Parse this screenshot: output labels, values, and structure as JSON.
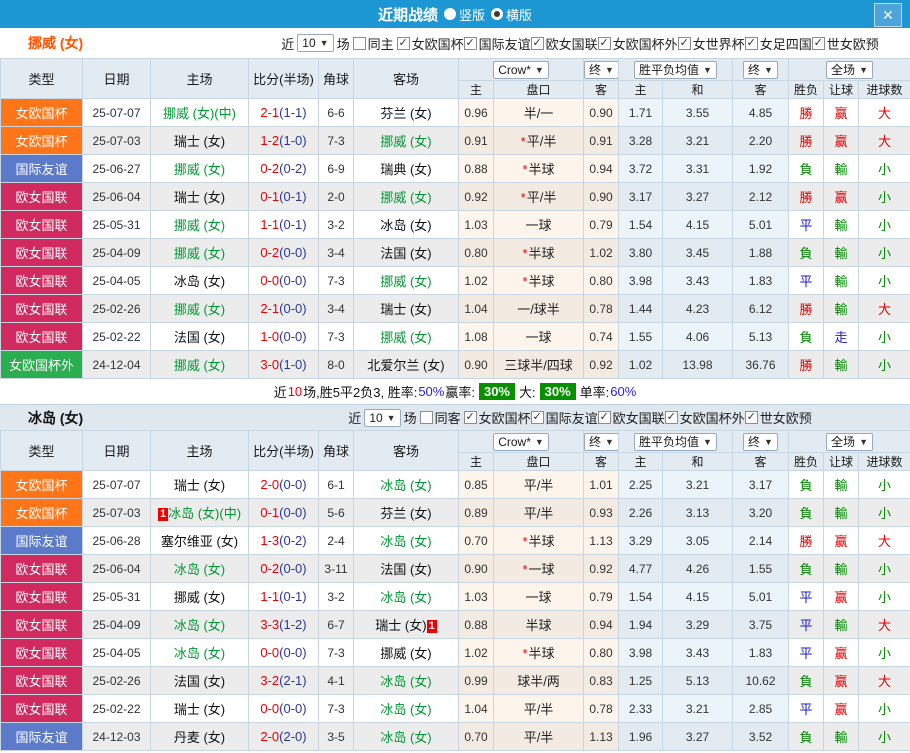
{
  "icons": {
    "dropdown_arrow": "▼",
    "checkmark": "✓",
    "close": "✕"
  },
  "titlebar": {
    "title": "近期战绩",
    "radio_options": [
      {
        "label": "竖版",
        "selected": false
      },
      {
        "label": "横版",
        "selected": true
      }
    ]
  },
  "header_labels": {
    "fixed": [
      "类型",
      "日期",
      "主场",
      "比分(半场)",
      "角球",
      "客场"
    ],
    "crow_select": "Crow*",
    "final_select": "终",
    "avg_select": "胜平负均值",
    "final2_select": "终",
    "scope_select": "全场",
    "sub": [
      "主",
      "盘口",
      "客",
      "主",
      "和",
      "客",
      "胜负",
      "让球",
      "进球数"
    ]
  },
  "type_colors": {
    "女欧国杯": "#ff7517",
    "国际友谊": "#5b7ac9",
    "欧女国联": "#d02a5f",
    "女欧国杯外": "#2bae4f"
  },
  "result_colors": {
    "勝": "#e60000",
    "赢": "#e60000",
    "大": "#e60000",
    "負": "#008800",
    "輸": "#008800",
    "小": "#008800",
    "平": "#1a1ad2",
    "走": "#1a1ad2"
  },
  "focus_color": "#009933",
  "sections": [
    {
      "team": "挪威 (女)",
      "team_color": "#ff5400",
      "filter": {
        "near": "近",
        "count": "10",
        "unit": "场",
        "same": {
          "label": "同主",
          "checked": false
        },
        "leagues": [
          {
            "label": "女欧国杯",
            "checked": true
          },
          {
            "label": "国际友谊",
            "checked": true
          },
          {
            "label": "欧女国联",
            "checked": true
          },
          {
            "label": "女欧国杯外",
            "checked": true
          },
          {
            "label": "女世界杯",
            "checked": true
          },
          {
            "label": "女足四国",
            "checked": true
          },
          {
            "label": "世女欧预",
            "checked": true
          }
        ]
      },
      "rows": [
        {
          "league": "女欧国杯",
          "date": "25-07-07",
          "home": "挪威 (女)(中)",
          "home_focus": true,
          "home_card": "",
          "score": "2-1",
          "half": "(1-1)",
          "corner": "6-6",
          "away": "芬兰 (女)",
          "away_focus": false,
          "away_card": "",
          "crow_home": "0.96",
          "star": false,
          "handicap": "半/一",
          "crow_away": "0.90",
          "avg_home": "1.71",
          "avg_draw": "3.55",
          "avg_away": "4.85",
          "result": "勝",
          "handicap_result": "赢",
          "goals": "大"
        },
        {
          "league": "女欧国杯",
          "date": "25-07-03",
          "home": "瑞士 (女)",
          "home_focus": false,
          "home_card": "",
          "score": "1-2",
          "half": "(1-0)",
          "corner": "7-3",
          "away": "挪威 (女)",
          "away_focus": true,
          "away_card": "",
          "crow_home": "0.91",
          "star": true,
          "handicap": "平/半",
          "crow_away": "0.91",
          "avg_home": "3.28",
          "avg_draw": "3.21",
          "avg_away": "2.20",
          "result": "勝",
          "handicap_result": "赢",
          "goals": "大"
        },
        {
          "league": "国际友谊",
          "date": "25-06-27",
          "home": "挪威 (女)",
          "home_focus": true,
          "home_card": "",
          "score": "0-2",
          "half": "(0-2)",
          "corner": "6-9",
          "away": "瑞典 (女)",
          "away_focus": false,
          "away_card": "",
          "crow_home": "0.88",
          "star": true,
          "handicap": "半球",
          "crow_away": "0.94",
          "avg_home": "3.72",
          "avg_draw": "3.31",
          "avg_away": "1.92",
          "result": "負",
          "handicap_result": "輸",
          "goals": "小"
        },
        {
          "league": "欧女国联",
          "date": "25-06-04",
          "home": "瑞士 (女)",
          "home_focus": false,
          "home_card": "",
          "score": "0-1",
          "half": "(0-1)",
          "corner": "2-0",
          "away": "挪威 (女)",
          "away_focus": true,
          "away_card": "",
          "crow_home": "0.92",
          "star": true,
          "handicap": "平/半",
          "crow_away": "0.90",
          "avg_home": "3.17",
          "avg_draw": "3.27",
          "avg_away": "2.12",
          "result": "勝",
          "handicap_result": "赢",
          "goals": "小"
        },
        {
          "league": "欧女国联",
          "date": "25-05-31",
          "home": "挪威 (女)",
          "home_focus": true,
          "home_card": "",
          "score": "1-1",
          "half": "(0-1)",
          "corner": "3-2",
          "away": "冰岛 (女)",
          "away_focus": false,
          "away_card": "",
          "crow_home": "1.03",
          "star": false,
          "handicap": "一球",
          "crow_away": "0.79",
          "avg_home": "1.54",
          "avg_draw": "4.15",
          "avg_away": "5.01",
          "result": "平",
          "handicap_result": "輸",
          "goals": "小"
        },
        {
          "league": "欧女国联",
          "date": "25-04-09",
          "home": "挪威 (女)",
          "home_focus": true,
          "home_card": "",
          "score": "0-2",
          "half": "(0-0)",
          "corner": "3-4",
          "away": "法国 (女)",
          "away_focus": false,
          "away_card": "",
          "crow_home": "0.80",
          "star": true,
          "handicap": "半球",
          "crow_away": "1.02",
          "avg_home": "3.80",
          "avg_draw": "3.45",
          "avg_away": "1.88",
          "result": "負",
          "handicap_result": "輸",
          "goals": "小"
        },
        {
          "league": "欧女国联",
          "date": "25-04-05",
          "home": "冰岛 (女)",
          "home_focus": false,
          "home_card": "",
          "score": "0-0",
          "half": "(0-0)",
          "corner": "7-3",
          "away": "挪威 (女)",
          "away_focus": true,
          "away_card": "",
          "crow_home": "1.02",
          "star": true,
          "handicap": "半球",
          "crow_away": "0.80",
          "avg_home": "3.98",
          "avg_draw": "3.43",
          "avg_away": "1.83",
          "result": "平",
          "handicap_result": "輸",
          "goals": "小"
        },
        {
          "league": "欧女国联",
          "date": "25-02-26",
          "home": "挪威 (女)",
          "home_focus": true,
          "home_card": "",
          "score": "2-1",
          "half": "(0-0)",
          "corner": "3-4",
          "away": "瑞士 (女)",
          "away_focus": false,
          "away_card": "",
          "crow_home": "1.04",
          "star": false,
          "handicap": "一/球半",
          "crow_away": "0.78",
          "avg_home": "1.44",
          "avg_draw": "4.23",
          "avg_away": "6.12",
          "result": "勝",
          "handicap_result": "輸",
          "goals": "大"
        },
        {
          "league": "欧女国联",
          "date": "25-02-22",
          "home": "法国 (女)",
          "home_focus": false,
          "home_card": "",
          "score": "1-0",
          "half": "(0-0)",
          "corner": "7-3",
          "away": "挪威 (女)",
          "away_focus": true,
          "away_card": "",
          "crow_home": "1.08",
          "star": false,
          "handicap": "一球",
          "crow_away": "0.74",
          "avg_home": "1.55",
          "avg_draw": "4.06",
          "avg_away": "5.13",
          "result": "負",
          "handicap_result": "走",
          "goals": "小"
        },
        {
          "league": "女欧国杯外",
          "date": "24-12-04",
          "home": "挪威 (女)",
          "home_focus": true,
          "home_card": "",
          "score": "3-0",
          "half": "(1-0)",
          "corner": "8-0",
          "away": "北爱尔兰 (女)",
          "away_focus": false,
          "away_card": "",
          "crow_home": "0.90",
          "star": false,
          "handicap": "三球半/四球",
          "crow_away": "0.92",
          "avg_home": "1.02",
          "avg_draw": "13.98",
          "avg_away": "36.76",
          "result": "勝",
          "handicap_result": "輸",
          "goals": "小"
        }
      ],
      "summary": [
        {
          "text": "近"
        },
        {
          "text": "10",
          "style": "red"
        },
        {
          "text": "场,胜5平2负3, 胜率:"
        },
        {
          "text": "50%",
          "style": "blue"
        },
        {
          "text": " 赢率:"
        },
        {
          "text": "30%",
          "style": "greenbox"
        },
        {
          "text": " 大:"
        },
        {
          "text": "30%",
          "style": "greenbox"
        },
        {
          "text": " 单率:"
        },
        {
          "text": "60%",
          "style": "blue"
        }
      ]
    },
    {
      "team": "冰岛 (女)",
      "team_color": "#111111",
      "filter": {
        "near": "近",
        "count": "10",
        "unit": "场",
        "same": {
          "label": "同客",
          "checked": false
        },
        "leagues": [
          {
            "label": "女欧国杯",
            "checked": true
          },
          {
            "label": "国际友谊",
            "checked": true
          },
          {
            "label": "欧女国联",
            "checked": true
          },
          {
            "label": "女欧国杯外",
            "checked": true
          },
          {
            "label": "世女欧预",
            "checked": true
          }
        ]
      },
      "rows": [
        {
          "league": "女欧国杯",
          "date": "25-07-07",
          "home": "瑞士 (女)",
          "home_focus": false,
          "home_card": "",
          "score": "2-0",
          "half": "(0-0)",
          "corner": "6-1",
          "away": "冰岛 (女)",
          "away_focus": true,
          "away_card": "",
          "crow_home": "0.85",
          "star": false,
          "handicap": "平/半",
          "crow_away": "1.01",
          "avg_home": "2.25",
          "avg_draw": "3.21",
          "avg_away": "3.17",
          "result": "負",
          "handicap_result": "輸",
          "goals": "小"
        },
        {
          "league": "女欧国杯",
          "date": "25-07-03",
          "home": "冰岛 (女)(中)",
          "home_focus": true,
          "home_card": "1",
          "score": "0-1",
          "half": "(0-0)",
          "corner": "5-6",
          "away": "芬兰 (女)",
          "away_focus": false,
          "away_card": "",
          "crow_home": "0.89",
          "star": false,
          "handicap": "平/半",
          "crow_away": "0.93",
          "avg_home": "2.26",
          "avg_draw": "3.13",
          "avg_away": "3.20",
          "result": "負",
          "handicap_result": "輸",
          "goals": "小"
        },
        {
          "league": "国际友谊",
          "date": "25-06-28",
          "home": "塞尔维亚 (女)",
          "home_focus": false,
          "home_card": "",
          "score": "1-3",
          "half": "(0-2)",
          "corner": "2-4",
          "away": "冰岛 (女)",
          "away_focus": true,
          "away_card": "",
          "crow_home": "0.70",
          "star": true,
          "handicap": "半球",
          "crow_away": "1.13",
          "avg_home": "3.29",
          "avg_draw": "3.05",
          "avg_away": "2.14",
          "result": "勝",
          "handicap_result": "赢",
          "goals": "大"
        },
        {
          "league": "欧女国联",
          "date": "25-06-04",
          "home": "冰岛 (女)",
          "home_focus": true,
          "home_card": "",
          "score": "0-2",
          "half": "(0-0)",
          "corner": "3-11",
          "away": "法国 (女)",
          "away_focus": false,
          "away_card": "",
          "crow_home": "0.90",
          "star": true,
          "handicap": "一球",
          "crow_away": "0.92",
          "avg_home": "4.77",
          "avg_draw": "4.26",
          "avg_away": "1.55",
          "result": "負",
          "handicap_result": "輸",
          "goals": "小"
        },
        {
          "league": "欧女国联",
          "date": "25-05-31",
          "home": "挪威 (女)",
          "home_focus": false,
          "home_card": "",
          "score": "1-1",
          "half": "(0-1)",
          "corner": "3-2",
          "away": "冰岛 (女)",
          "away_focus": true,
          "away_card": "",
          "crow_home": "1.03",
          "star": false,
          "handicap": "一球",
          "crow_away": "0.79",
          "avg_home": "1.54",
          "avg_draw": "4.15",
          "avg_away": "5.01",
          "result": "平",
          "handicap_result": "赢",
          "goals": "小"
        },
        {
          "league": "欧女国联",
          "date": "25-04-09",
          "home": "冰岛 (女)",
          "home_focus": true,
          "home_card": "",
          "score": "3-3",
          "half": "(1-2)",
          "corner": "6-7",
          "away": "瑞士 (女)",
          "away_focus": false,
          "away_card": "1",
          "crow_home": "0.88",
          "star": false,
          "handicap": "半球",
          "crow_away": "0.94",
          "avg_home": "1.94",
          "avg_draw": "3.29",
          "avg_away": "3.75",
          "result": "平",
          "handicap_result": "輸",
          "goals": "大"
        },
        {
          "league": "欧女国联",
          "date": "25-04-05",
          "home": "冰岛 (女)",
          "home_focus": true,
          "home_card": "",
          "score": "0-0",
          "half": "(0-0)",
          "corner": "7-3",
          "away": "挪威 (女)",
          "away_focus": false,
          "away_card": "",
          "crow_home": "1.02",
          "star": true,
          "handicap": "半球",
          "crow_away": "0.80",
          "avg_home": "3.98",
          "avg_draw": "3.43",
          "avg_away": "1.83",
          "result": "平",
          "handicap_result": "赢",
          "goals": "小"
        },
        {
          "league": "欧女国联",
          "date": "25-02-26",
          "home": "法国 (女)",
          "home_focus": false,
          "home_card": "",
          "score": "3-2",
          "half": "(2-1)",
          "corner": "4-1",
          "away": "冰岛 (女)",
          "away_focus": true,
          "away_card": "",
          "crow_home": "0.99",
          "star": false,
          "handicap": "球半/两",
          "crow_away": "0.83",
          "avg_home": "1.25",
          "avg_draw": "5.13",
          "avg_away": "10.62",
          "result": "負",
          "handicap_result": "赢",
          "goals": "大"
        },
        {
          "league": "欧女国联",
          "date": "25-02-22",
          "home": "瑞士 (女)",
          "home_focus": false,
          "home_card": "",
          "score": "0-0",
          "half": "(0-0)",
          "corner": "7-3",
          "away": "冰岛 (女)",
          "away_focus": true,
          "away_card": "",
          "crow_home": "1.04",
          "star": false,
          "handicap": "平/半",
          "crow_away": "0.78",
          "avg_home": "2.33",
          "avg_draw": "3.21",
          "avg_away": "2.85",
          "result": "平",
          "handicap_result": "赢",
          "goals": "小"
        },
        {
          "league": "国际友谊",
          "date": "24-12-03",
          "home": "丹麦 (女)",
          "home_focus": false,
          "home_card": "",
          "score": "2-0",
          "half": "(2-0)",
          "corner": "3-5",
          "away": "冰岛 (女)",
          "away_focus": true,
          "away_card": "",
          "crow_home": "0.70",
          "star": false,
          "handicap": "平/半",
          "crow_away": "1.13",
          "avg_home": "1.96",
          "avg_draw": "3.27",
          "avg_away": "3.52",
          "result": "負",
          "handicap_result": "輸",
          "goals": "小"
        }
      ],
      "summary": null
    }
  ]
}
